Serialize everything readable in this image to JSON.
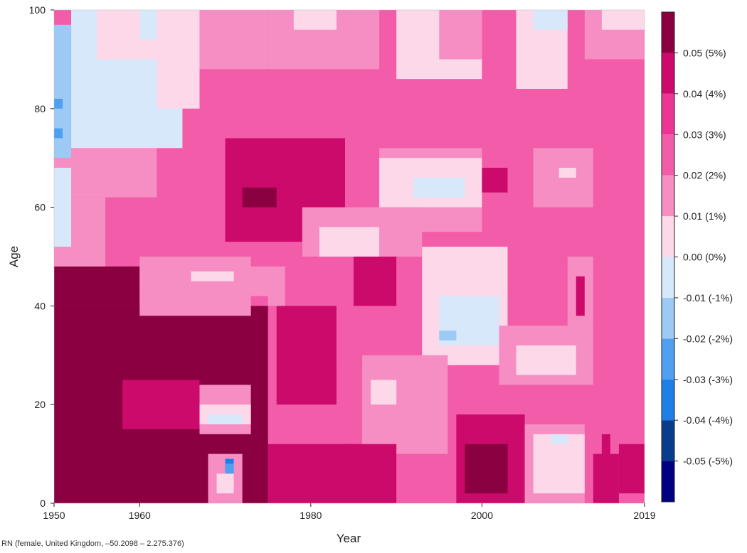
{
  "chart_data": {
    "type": "heatmap",
    "title": "",
    "xlabel": "Year",
    "ylabel": "Age",
    "x_range": [
      1950,
      2019
    ],
    "y_range": [
      0,
      100
    ],
    "x_ticks": [
      1950,
      1960,
      1980,
      2000,
      2019
    ],
    "y_ticks": [
      0,
      20,
      40,
      60,
      80,
      100
    ],
    "grid": false,
    "legend_position": "right",
    "colorbar": {
      "range": [
        -0.06,
        0.06
      ],
      "bins": [
        {
          "from": -0.06,
          "to": -0.05,
          "color": "#000080"
        },
        {
          "from": -0.05,
          "to": -0.04,
          "color": "#0a3c8c"
        },
        {
          "from": -0.04,
          "to": -0.03,
          "color": "#1e7fe8"
        },
        {
          "from": -0.03,
          "to": -0.02,
          "color": "#4fa0f0"
        },
        {
          "from": -0.02,
          "to": -0.01,
          "color": "#9ccaf5"
        },
        {
          "from": -0.01,
          "to": 0.0,
          "color": "#d7e8fb"
        },
        {
          "from": 0.0,
          "to": 0.01,
          "color": "#fcd8e9"
        },
        {
          "from": 0.01,
          "to": 0.02,
          "color": "#f68dc3"
        },
        {
          "from": 0.02,
          "to": 0.03,
          "color": "#f25ca8"
        },
        {
          "from": 0.03,
          "to": 0.04,
          "color": "#ee3596"
        },
        {
          "from": 0.04,
          "to": 0.05,
          "color": "#cc0a6c"
        },
        {
          "from": 0.05,
          "to": 0.06,
          "color": "#8a0040"
        }
      ],
      "tick_values": [
        0.05,
        0.04,
        0.03,
        0.02,
        0.01,
        0.0,
        -0.01,
        -0.02,
        -0.03,
        -0.04,
        -0.05
      ],
      "tick_labels": [
        "0.05 (5%)",
        "0.04 (4%)",
        "0.03 (3%)",
        "0.02 (2%)",
        "0.01 (1%)",
        "0.00 (0%)",
        "-0.01 (-1%)",
        "-0.02 (-2%)",
        "-0.03 (-3%)",
        "-0.04 (-4%)",
        "-0.05 (-5%)"
      ]
    },
    "background_value": 0.025,
    "regions": [
      {
        "x": [
          1950,
          1975
        ],
        "y": [
          0,
          40
        ],
        "value": 0.055
      },
      {
        "x": [
          1950,
          1960
        ],
        "y": [
          40,
          48
        ],
        "value": 0.055
      },
      {
        "x": [
          1960,
          1970
        ],
        "y": [
          40,
          45
        ],
        "value": 0.045
      },
      {
        "x": [
          1975,
          1985
        ],
        "y": [
          0,
          12
        ],
        "value": 0.045
      },
      {
        "x": [
          1976,
          1983
        ],
        "y": [
          20,
          40
        ],
        "value": 0.045
      },
      {
        "x": [
          1985,
          1990
        ],
        "y": [
          40,
          55
        ],
        "value": 0.045
      },
      {
        "x": [
          1958,
          1967
        ],
        "y": [
          15,
          25
        ],
        "value": 0.045
      },
      {
        "x": [
          1950,
          1956
        ],
        "y": [
          48,
          62
        ],
        "value": 0.015
      },
      {
        "x": [
          1950,
          1962
        ],
        "y": [
          62,
          72
        ],
        "value": 0.015
      },
      {
        "x": [
          1950,
          1952
        ],
        "y": [
          70,
          97
        ],
        "value": -0.015
      },
      {
        "x": [
          1950,
          1951
        ],
        "y": [
          80,
          82
        ],
        "value": -0.025
      },
      {
        "x": [
          1950,
          1951
        ],
        "y": [
          74,
          76
        ],
        "value": -0.025
      },
      {
        "x": [
          1950,
          1952
        ],
        "y": [
          52,
          68
        ],
        "value": -0.005
      },
      {
        "x": [
          1952,
          1965
        ],
        "y": [
          72,
          100
        ],
        "value": -0.005
      },
      {
        "x": [
          1955,
          1962
        ],
        "y": [
          90,
          100
        ],
        "value": 0.005
      },
      {
        "x": [
          1960,
          1965
        ],
        "y": [
          94,
          100
        ],
        "value": -0.005
      },
      {
        "x": [
          1962,
          1967
        ],
        "y": [
          80,
          100
        ],
        "value": 0.005
      },
      {
        "x": [
          1967,
          1975
        ],
        "y": [
          88,
          100
        ],
        "value": 0.015
      },
      {
        "x": [
          1975,
          1988
        ],
        "y": [
          88,
          100
        ],
        "value": 0.015
      },
      {
        "x": [
          1978,
          1983
        ],
        "y": [
          96,
          100
        ],
        "value": 0.005
      },
      {
        "x": [
          1990,
          2000
        ],
        "y": [
          86,
          100
        ],
        "value": 0.005
      },
      {
        "x": [
          1995,
          2000
        ],
        "y": [
          90,
          100
        ],
        "value": 0.015
      },
      {
        "x": [
          2004,
          2010
        ],
        "y": [
          84,
          100
        ],
        "value": 0.005
      },
      {
        "x": [
          2006,
          2010
        ],
        "y": [
          96,
          100
        ],
        "value": -0.005
      },
      {
        "x": [
          2012,
          2019
        ],
        "y": [
          90,
          100
        ],
        "value": 0.015
      },
      {
        "x": [
          2014,
          2019
        ],
        "y": [
          96,
          100
        ],
        "value": 0.005
      },
      {
        "x": [
          1970,
          1984
        ],
        "y": [
          53,
          74
        ],
        "value": 0.045
      },
      {
        "x": [
          1972,
          1976
        ],
        "y": [
          60,
          64
        ],
        "value": 0.055
      },
      {
        "x": [
          1988,
          2000
        ],
        "y": [
          55,
          72
        ],
        "value": 0.015
      },
      {
        "x": [
          1988,
          2000
        ],
        "y": [
          60,
          70
        ],
        "value": 0.005
      },
      {
        "x": [
          1992,
          1998
        ],
        "y": [
          62,
          66
        ],
        "value": -0.005
      },
      {
        "x": [
          1979,
          1993
        ],
        "y": [
          50,
          60
        ],
        "value": 0.015
      },
      {
        "x": [
          1981,
          1988
        ],
        "y": [
          50,
          56
        ],
        "value": 0.005
      },
      {
        "x": [
          2000,
          2003
        ],
        "y": [
          63,
          68
        ],
        "value": 0.045
      },
      {
        "x": [
          2006,
          2013
        ],
        "y": [
          60,
          72
        ],
        "value": 0.015
      },
      {
        "x": [
          2009,
          2011
        ],
        "y": [
          66,
          68
        ],
        "value": 0.005
      },
      {
        "x": [
          1993,
          2003
        ],
        "y": [
          28,
          52
        ],
        "value": 0.005
      },
      {
        "x": [
          1995,
          2002
        ],
        "y": [
          32,
          42
        ],
        "value": -0.005
      },
      {
        "x": [
          1995,
          1997
        ],
        "y": [
          33,
          35
        ],
        "value": -0.015
      },
      {
        "x": [
          1960,
          1973
        ],
        "y": [
          38,
          50
        ],
        "value": 0.015
      },
      {
        "x": [
          1972,
          1977
        ],
        "y": [
          42,
          48
        ],
        "value": 0.015
      },
      {
        "x": [
          1966,
          1971
        ],
        "y": [
          45,
          47
        ],
        "value": 0.005
      },
      {
        "x": [
          1986,
          1996
        ],
        "y": [
          10,
          30
        ],
        "value": 0.015
      },
      {
        "x": [
          1987,
          1990
        ],
        "y": [
          20,
          25
        ],
        "value": 0.005
      },
      {
        "x": [
          2002,
          2013
        ],
        "y": [
          24,
          36
        ],
        "value": 0.015
      },
      {
        "x": [
          2004,
          2011
        ],
        "y": [
          26,
          32
        ],
        "value": 0.005
      },
      {
        "x": [
          1997,
          2005
        ],
        "y": [
          0,
          18
        ],
        "value": 0.045
      },
      {
        "x": [
          1998,
          2003
        ],
        "y": [
          2,
          12
        ],
        "value": 0.055
      },
      {
        "x": [
          1984,
          1990
        ],
        "y": [
          0,
          12
        ],
        "value": 0.045
      },
      {
        "x": [
          2005,
          2012
        ],
        "y": [
          0,
          16
        ],
        "value": 0.015
      },
      {
        "x": [
          2006,
          2012
        ],
        "y": [
          2,
          14
        ],
        "value": 0.005
      },
      {
        "x": [
          2008,
          2010
        ],
        "y": [
          12,
          14
        ],
        "value": -0.005
      },
      {
        "x": [
          2013,
          2016
        ],
        "y": [
          0,
          10
        ],
        "value": 0.045
      },
      {
        "x": [
          2014,
          2015
        ],
        "y": [
          10,
          14
        ],
        "value": 0.045
      },
      {
        "x": [
          2016,
          2019
        ],
        "y": [
          2,
          12
        ],
        "value": 0.045
      },
      {
        "x": [
          2010,
          2013
        ],
        "y": [
          36,
          50
        ],
        "value": 0.015
      },
      {
        "x": [
          2011,
          2012
        ],
        "y": [
          38,
          46
        ],
        "value": 0.045
      },
      {
        "x": [
          1967,
          1973
        ],
        "y": [
          14,
          24
        ],
        "value": 0.015
      },
      {
        "x": [
          1967,
          1973
        ],
        "y": [
          16,
          20
        ],
        "value": 0.005
      },
      {
        "x": [
          1968,
          1972
        ],
        "y": [
          16,
          18
        ],
        "value": -0.005
      },
      {
        "x": [
          1968,
          1972
        ],
        "y": [
          0,
          10
        ],
        "value": 0.015
      },
      {
        "x": [
          1969,
          1971
        ],
        "y": [
          2,
          6
        ],
        "value": 0.005
      },
      {
        "x": [
          1970,
          1971
        ],
        "y": [
          6,
          8
        ],
        "value": -0.025
      },
      {
        "x": [
          1970,
          1971
        ],
        "y": [
          8,
          9
        ],
        "value": -0.035
      },
      {
        "x": [
          1975,
          1977
        ],
        "y": [
          40,
          42
        ],
        "value": 0.015
      },
      {
        "x": [
          1983,
          1986
        ],
        "y": [
          28,
          40
        ],
        "value": 0.025
      }
    ]
  },
  "footer": {
    "note": "RN (female, United Kingdom, –50.2098 – 2.275.376)"
  }
}
